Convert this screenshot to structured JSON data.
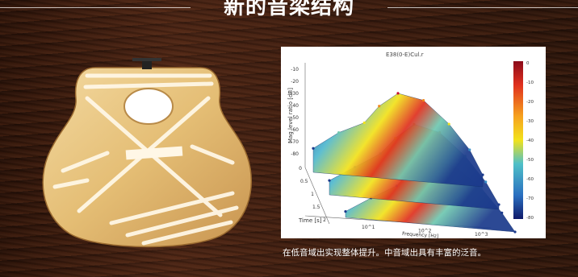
{
  "header": {
    "title": "新的音梁结构"
  },
  "illustration": {
    "label": "",
    "icon": "guitar-top-bracing"
  },
  "chart": {
    "title": "E38(0-E)Cul.r",
    "xlabel": "Frequency [Hz]",
    "ylabel": "Mag level ratio [dB]",
    "tlabel": "Time [s]",
    "x_ticks": [
      "10^1",
      "10^2",
      "10^3"
    ],
    "y_ticks": [
      "-10",
      "-20",
      "-30",
      "-40",
      "-50",
      "-60",
      "-70",
      "-80"
    ],
    "t_ticks": [
      "0",
      "0.5",
      "1",
      "1.5",
      "2"
    ],
    "colorbar_ticks": [
      "0",
      "-10",
      "-20",
      "-30",
      "-40",
      "-50",
      "-60",
      "-70",
      "-80"
    ],
    "colors": {
      "high": "#c8102e",
      "mid": "#f2e21b",
      "low": "#1b3a8c"
    }
  },
  "chart_data": {
    "type": "area",
    "title": "E38(0-E)Cul.r",
    "xlabel": "Frequency [Hz]",
    "ylabel": "Mag level ratio [dB]",
    "zlabel": "Time [s]",
    "x_scale": "log",
    "xlim": [
      10,
      1000
    ],
    "ylim": [
      -80,
      0
    ],
    "tlim": [
      0,
      2
    ],
    "series": [
      {
        "name": "",
        "x": [
          10,
          20,
          40,
          60,
          100,
          200,
          400,
          700,
          1000
        ],
        "values": [
          -60,
          -45,
          -35,
          -20,
          -8,
          -12,
          -30,
          -50,
          -70
        ]
      },
      {
        "name": "",
        "x": [
          10,
          20,
          40,
          60,
          100,
          200,
          400,
          700,
          1000
        ],
        "values": [
          -68,
          -55,
          -42,
          -28,
          -15,
          -20,
          -38,
          -58,
          -76
        ]
      },
      {
        "name": "",
        "x": [
          10,
          20,
          40,
          60,
          100,
          200,
          400,
          700,
          1000
        ],
        "values": [
          -75,
          -62,
          -50,
          -36,
          -25,
          -30,
          -46,
          -65,
          -80
        ]
      }
    ]
  },
  "caption": {
    "text": "在低音域出实现整体提升。中音域出具有丰富的泛音。"
  }
}
